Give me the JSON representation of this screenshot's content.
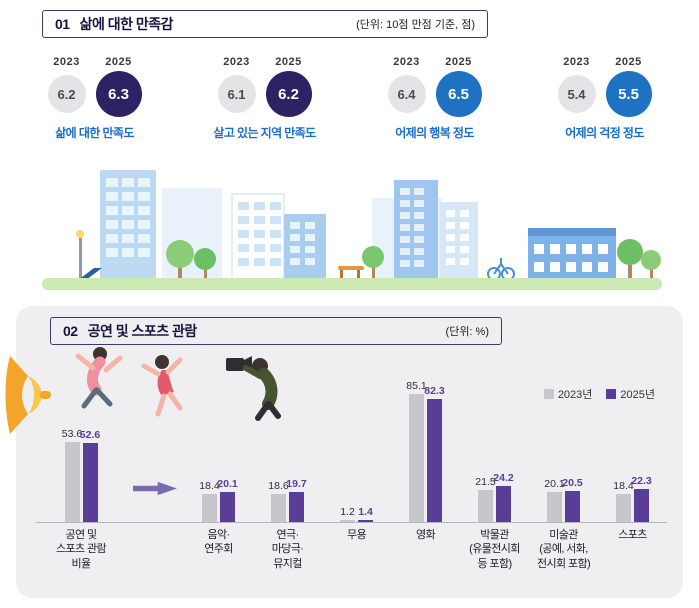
{
  "colors": {
    "accent_purple": "#5a3d96",
    "accent_blue": "#1f72c2",
    "dark_indigo": "#2d2263",
    "gray_series": "#c7c7cb",
    "panel_bg": "#efeff1",
    "label_blue": "#1b6ec8"
  },
  "section1": {
    "number": "01",
    "title": "삶에 대한 만족감",
    "unit": "(단위: 10점 만점 기준, 점)",
    "year_labels": {
      "y2023": "2023",
      "y2025": "2025"
    },
    "metrics": [
      {
        "label": "삶에 대한 만족도",
        "y2023": "6.2",
        "y2025": "6.3"
      },
      {
        "label": "살고 있는 지역 만족도",
        "y2023": "6.1",
        "y2025": "6.2"
      },
      {
        "label": "어제의 행복 정도",
        "y2023": "6.4",
        "y2025": "6.5"
      },
      {
        "label": "어제의 걱정 정도",
        "y2023": "5.4",
        "y2025": "5.5"
      }
    ]
  },
  "section2": {
    "number": "02",
    "title": "공연 및 스포츠 관람",
    "unit": "(단위: %)"
  },
  "chart_data": {
    "type": "bar",
    "title": "공연 및 스포츠 관람",
    "ylabel": "%",
    "ylim": [
      0,
      100
    ],
    "grid": false,
    "legend_position": "top-right",
    "categories": [
      {
        "lines": [
          "공연 및",
          "스포츠 관람",
          "비율"
        ]
      },
      {
        "lines": [
          "음악·",
          "연주회"
        ]
      },
      {
        "lines": [
          "연극·",
          "마당극·",
          "뮤지컬"
        ]
      },
      {
        "lines": [
          "무용"
        ]
      },
      {
        "lines": [
          "영화"
        ]
      },
      {
        "lines": [
          "박물관",
          "(유물전시회",
          "등 포함)"
        ]
      },
      {
        "lines": [
          "미술관",
          "(공예, 서화,",
          "전시회 포함)"
        ]
      },
      {
        "lines": [
          "스포츠"
        ]
      }
    ],
    "series": [
      {
        "name": "2023년",
        "color": "#c7c7cb",
        "values": [
          53.6,
          18.4,
          18.6,
          1.2,
          85.1,
          21.5,
          20.1,
          18.4
        ]
      },
      {
        "name": "2025년",
        "color": "#5a3d96",
        "values": [
          52.6,
          20.1,
          19.7,
          1.4,
          82.3,
          24.2,
          20.5,
          22.3
        ]
      }
    ]
  }
}
